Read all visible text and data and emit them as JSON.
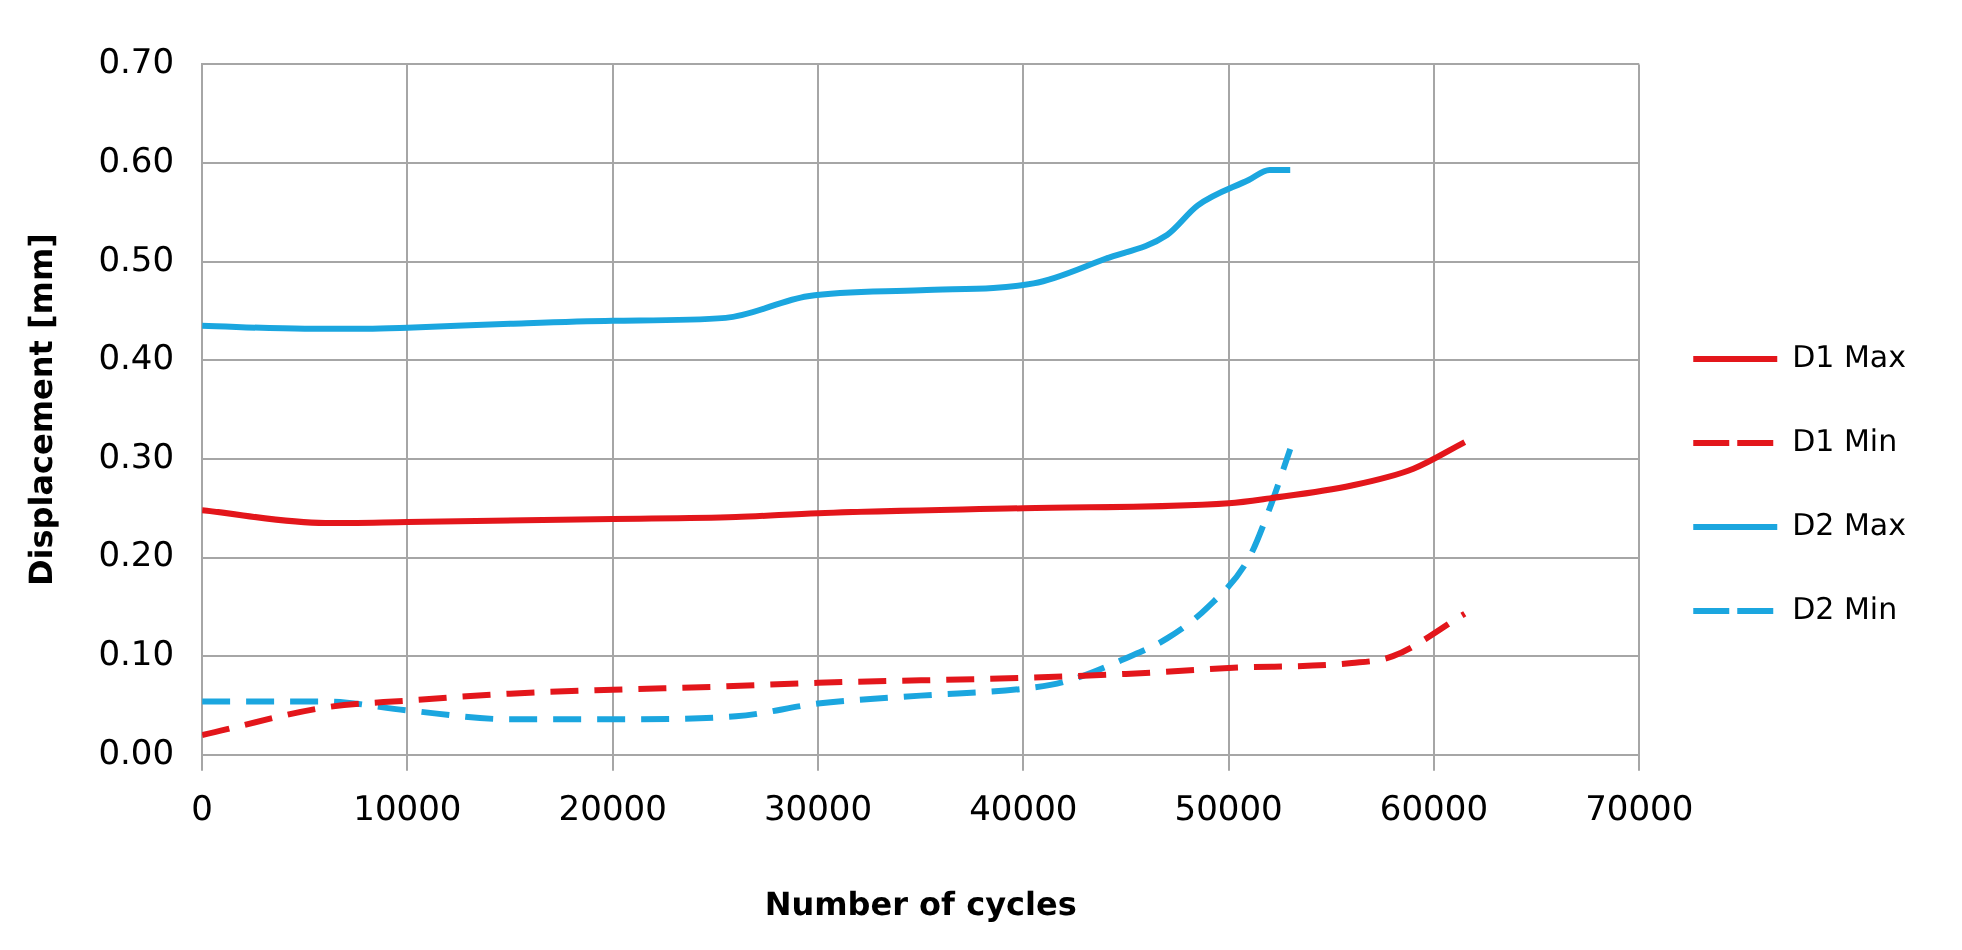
{
  "chart_data": {
    "type": "line",
    "xlabel": "Number of cycles",
    "ylabel": "Displacement [mm]",
    "xlim": [
      0,
      70000
    ],
    "xticks": [
      0,
      10000,
      20000,
      30000,
      40000,
      50000,
      60000,
      70000
    ],
    "ylim": [
      0,
      0.7
    ],
    "yticks": [
      {
        "value": 0,
        "label": "0.00"
      },
      {
        "value": 0.1,
        "label": "0.10"
      },
      {
        "value": 0.2,
        "label": "0.20"
      },
      {
        "value": 0.3,
        "label": "0.30"
      },
      {
        "value": 0.4,
        "label": "0.40"
      },
      {
        "value": 0.5,
        "label": "0.50"
      },
      {
        "value": 0.6,
        "label": "0.60"
      },
      {
        "value": 0.7,
        "label": "0.70"
      }
    ],
    "grid": true,
    "legend": "right",
    "marker": "none",
    "series": [
      {
        "name": "D1 Max",
        "color": "#e3161b",
        "line_style": "solid",
        "x": [
          0,
          6000,
          10000,
          20000,
          26000,
          30000,
          40000,
          50000,
          52000,
          56000,
          59000,
          61500
        ],
        "values": [
          0.248,
          0.235,
          0.236,
          0.239,
          0.241,
          0.245,
          0.25,
          0.255,
          0.26,
          0.273,
          0.29,
          0.317
        ]
      },
      {
        "name": "D1 Min",
        "color": "#e3161b",
        "line_style": "dashed",
        "x": [
          0,
          6000,
          10000,
          15000,
          20000,
          25000,
          30000,
          40000,
          45000,
          50000,
          56000,
          58000,
          61500
        ],
        "values": [
          0.02,
          0.048,
          0.055,
          0.062,
          0.066,
          0.069,
          0.073,
          0.078,
          0.082,
          0.088,
          0.093,
          0.1,
          0.143
        ]
      },
      {
        "name": "D2 Max",
        "color": "#1ba6df",
        "line_style": "solid",
        "x": [
          0,
          5000,
          8000,
          10000,
          15000,
          20000,
          25500,
          29500,
          35000,
          40500,
          44000,
          47000,
          48500,
          51000,
          52000,
          53000
        ],
        "values": [
          0.435,
          0.432,
          0.432,
          0.433,
          0.437,
          0.44,
          0.443,
          0.465,
          0.471,
          0.478,
          0.503,
          0.527,
          0.557,
          0.583,
          0.593,
          0.593
        ]
      },
      {
        "name": "D2 Min",
        "color": "#1ba6df",
        "line_style": "dashed",
        "x": [
          0,
          6000,
          10000,
          15000,
          20000,
          26000,
          30000,
          35000,
          40000,
          42000,
          45000,
          47000,
          49000,
          51000,
          52000,
          53000
        ],
        "values": [
          0.054,
          0.054,
          0.045,
          0.036,
          0.036,
          0.039,
          0.052,
          0.06,
          0.067,
          0.074,
          0.098,
          0.118,
          0.15,
          0.2,
          0.25,
          0.31
        ]
      }
    ]
  }
}
